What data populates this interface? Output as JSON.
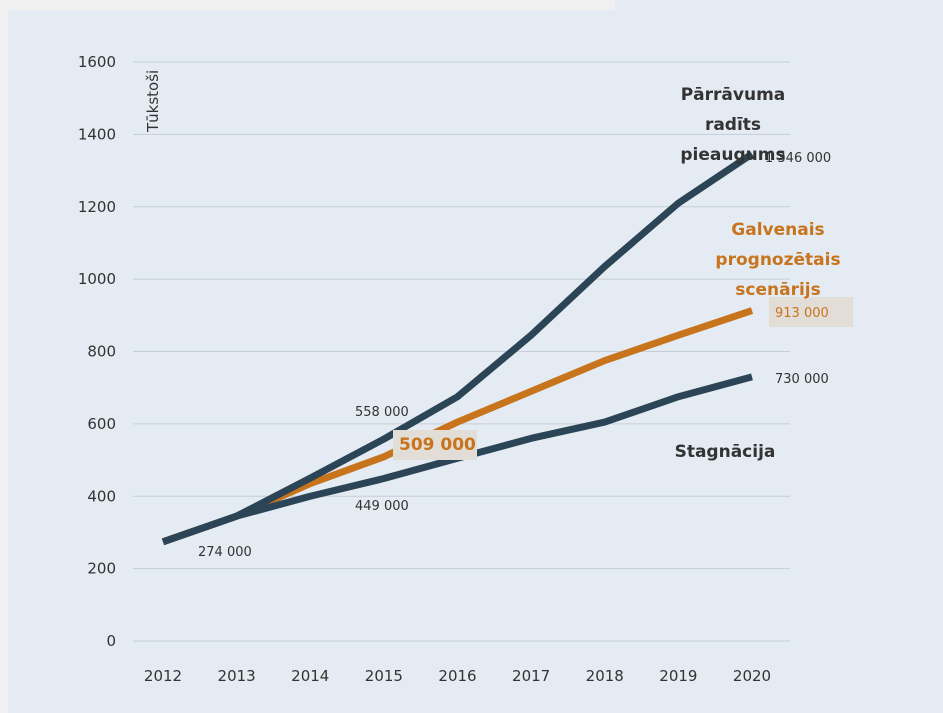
{
  "chart_data": {
    "type": "line",
    "y_label": "Tūkstoši",
    "x": [
      2012,
      2013,
      2014,
      2015,
      2016,
      2017,
      2018,
      2019,
      2020
    ],
    "xlim": [
      2012,
      2020
    ],
    "xticks": [
      2012,
      2013,
      2014,
      2015,
      2016,
      2017,
      2018,
      2019,
      2020
    ],
    "ylim": [
      0,
      1600
    ],
    "yticks": [
      0,
      200,
      400,
      600,
      800,
      1000,
      1200,
      1400,
      1600
    ],
    "grid": true,
    "series": [
      {
        "name": "Pārrāvuma radīts pieaugums",
        "color": "#2b4556",
        "values": [
          274,
          345,
          450,
          558,
          675,
          845,
          1035,
          1210,
          1346
        ],
        "value_labels": [
          null,
          null,
          null,
          "558 000",
          null,
          null,
          null,
          null,
          "1 346 000"
        ]
      },
      {
        "name": "Galvenais prognozētais scenārijs",
        "color": "#c8741c",
        "values": [
          274,
          345,
          435,
          509,
          605,
          690,
          775,
          845,
          913
        ],
        "value_labels": [
          null,
          null,
          null,
          "509 000",
          null,
          null,
          null,
          null,
          "913 000"
        ]
      },
      {
        "name": "Stagnācija",
        "color": "#2b4556",
        "values": [
          274,
          345,
          400,
          449,
          505,
          560,
          605,
          675,
          730
        ],
        "value_labels": [
          "274 000",
          null,
          null,
          "449 000",
          null,
          null,
          null,
          null,
          "730 000"
        ]
      }
    ]
  }
}
